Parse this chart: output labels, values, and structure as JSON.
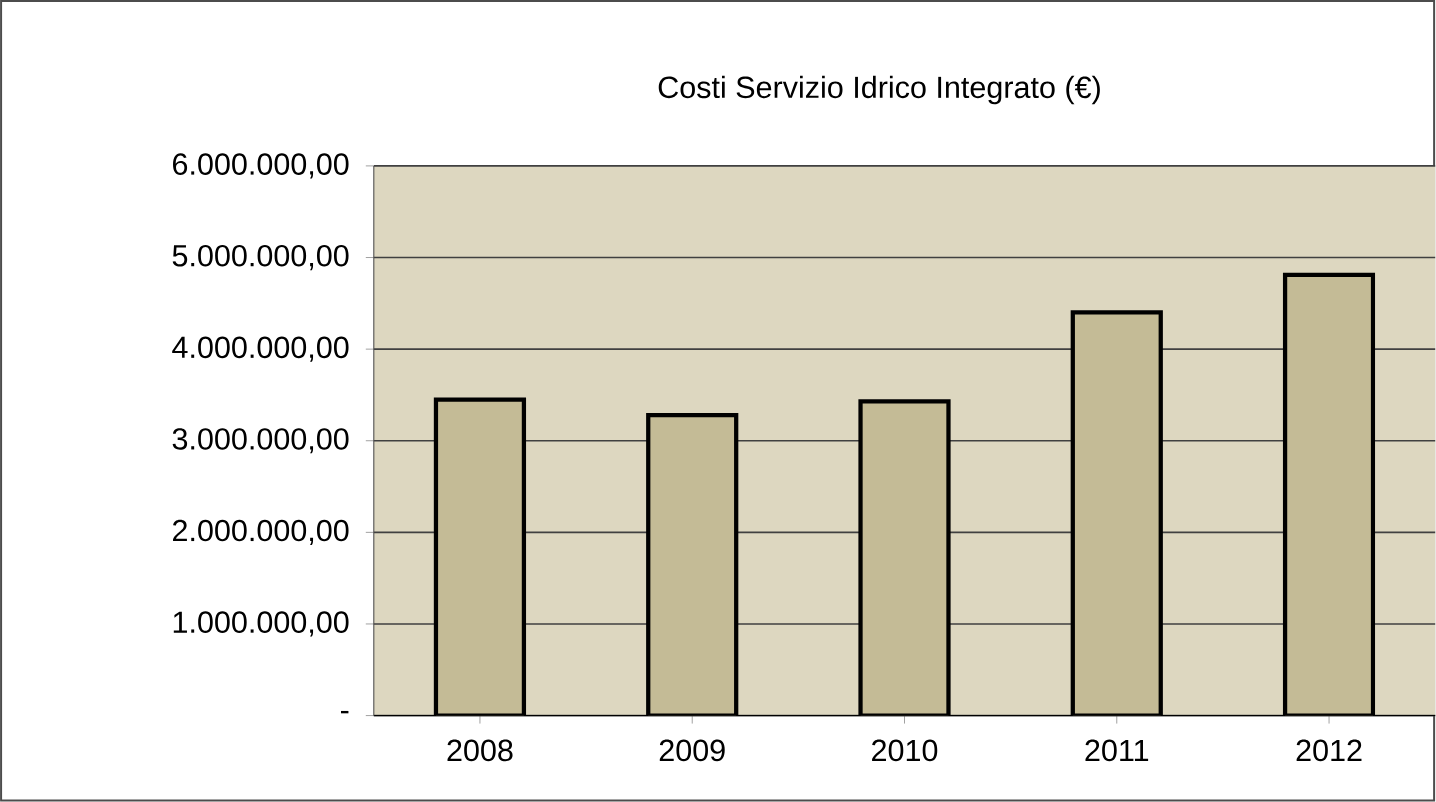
{
  "chart_data": {
    "type": "bar",
    "title": "Costi Servizio Idrico Integrato (€)",
    "categories": [
      "2008",
      "2009",
      "2010",
      "2011",
      "2012"
    ],
    "values": [
      3450000,
      3280000,
      3430000,
      4400000,
      4810000
    ],
    "color": "#c4bb96",
    "ylim": [
      0,
      6000000
    ],
    "yticks": [
      {
        "value": 0,
        "label": "-"
      },
      {
        "value": 1000000,
        "label": "1.000.000,00"
      },
      {
        "value": 2000000,
        "label": "2.000.000,00"
      },
      {
        "value": 3000000,
        "label": "3.000.000,00"
      },
      {
        "value": 4000000,
        "label": "4.000.000,00"
      },
      {
        "value": 5000000,
        "label": "5.000.000,00"
      },
      {
        "value": 6000000,
        "label": "6.000.000,00"
      }
    ],
    "grid": "y"
  }
}
